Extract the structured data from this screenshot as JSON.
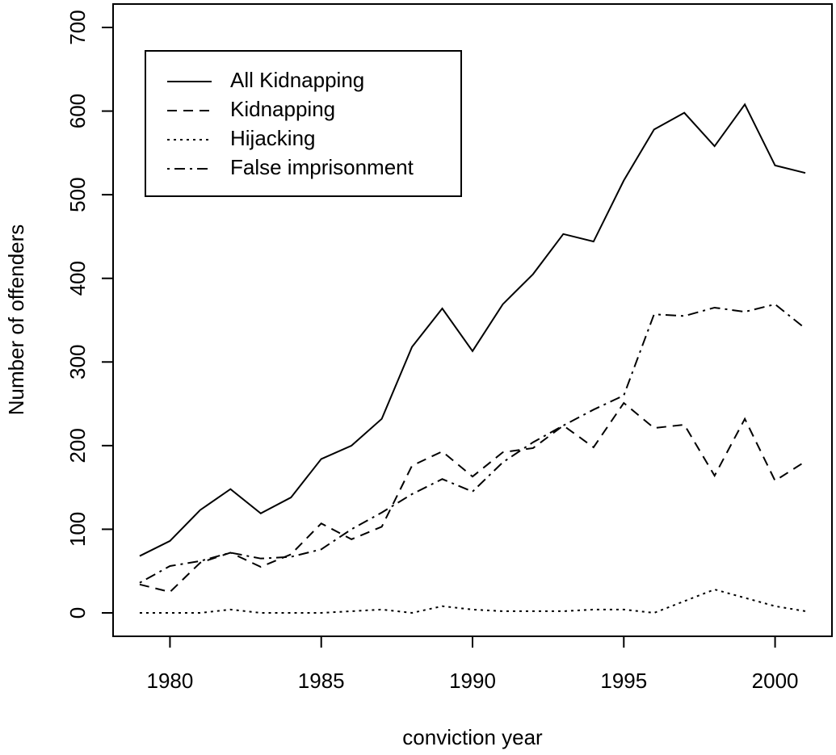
{
  "chart_data": {
    "type": "line",
    "xlabel": "conviction year",
    "ylabel": "Number of offenders",
    "x": [
      1979,
      1980,
      1981,
      1982,
      1983,
      1984,
      1985,
      1986,
      1987,
      1988,
      1989,
      1990,
      1991,
      1992,
      1993,
      1994,
      1995,
      1996,
      1997,
      1998,
      1999,
      2000,
      2001
    ],
    "series": [
      {
        "name": "All Kidnapping",
        "color": "#000000",
        "dash": "solid",
        "values": [
          68,
          86,
          123,
          148,
          119,
          138,
          184,
          200,
          232,
          318,
          364,
          313,
          369,
          405,
          453,
          444,
          517,
          578,
          598,
          558,
          608,
          535,
          526
        ]
      },
      {
        "name": "Kidnapping",
        "color": "#000000",
        "dash": "dashed",
        "values": [
          34,
          25,
          60,
          72,
          55,
          70,
          107,
          88,
          103,
          176,
          193,
          163,
          192,
          197,
          224,
          198,
          251,
          221,
          225,
          164,
          232,
          158,
          181
        ]
      },
      {
        "name": "Hijacking",
        "color": "#000000",
        "dash": "dotted",
        "values": [
          0,
          0,
          0,
          4,
          0,
          0,
          0,
          2,
          4,
          0,
          8,
          4,
          2,
          2,
          2,
          4,
          4,
          0,
          14,
          28,
          18,
          8,
          2
        ]
      },
      {
        "name": "False imprisonment",
        "color": "#000000",
        "dash": "dotdash",
        "values": [
          36,
          56,
          62,
          72,
          65,
          67,
          76,
          100,
          120,
          142,
          160,
          145,
          180,
          204,
          224,
          243,
          260,
          357,
          355,
          365,
          360,
          369,
          340
        ]
      }
    ],
    "xlim": [
      1978.12,
      2001.88
    ],
    "xticks": [
      1980,
      1985,
      1990,
      1995,
      2000
    ],
    "ylim": [
      -28,
      728
    ],
    "yticks": [
      0,
      100,
      200,
      300,
      400,
      500,
      600,
      700
    ],
    "legend": "top-left"
  }
}
